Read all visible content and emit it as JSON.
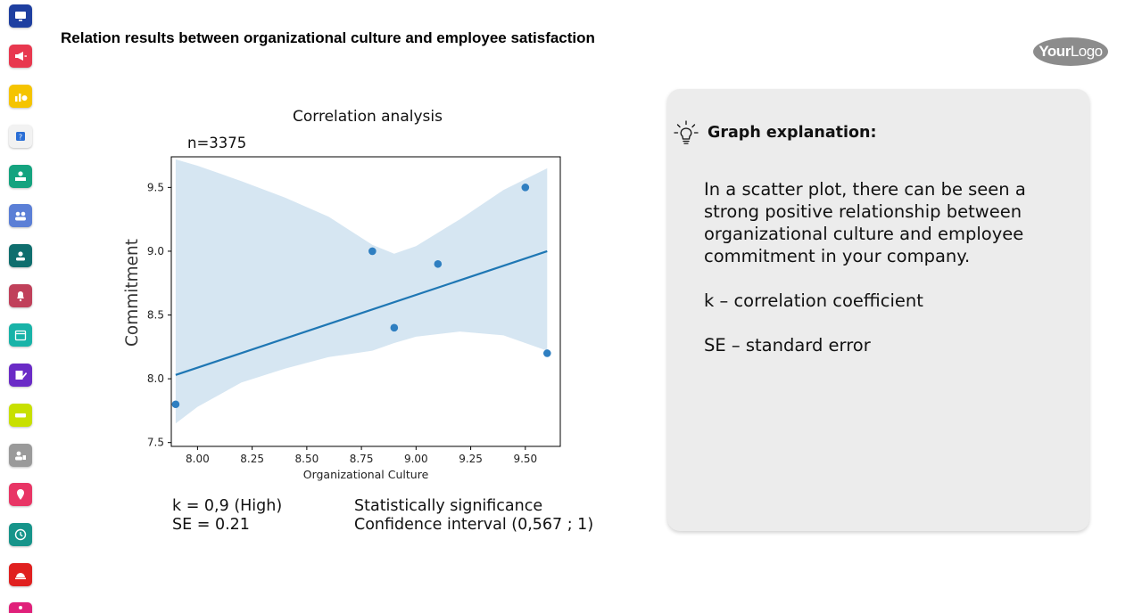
{
  "page": {
    "title": "Relation results between organizational culture and employee satisfaction"
  },
  "logo": {
    "part1": "Your",
    "part2": "Logo"
  },
  "sidebar": {
    "items": [
      {
        "icon": "monitor-icon",
        "color": "#1e3fa0"
      },
      {
        "icon": "megaphone-icon",
        "color": "#e8384f"
      },
      {
        "icon": "chart-dollar-icon",
        "color": "#f5c400"
      },
      {
        "icon": "question-icon",
        "color": "#f2f2f2"
      },
      {
        "icon": "training-icon",
        "color": "#14a37f"
      },
      {
        "icon": "team-icon",
        "color": "#5b7fd6"
      },
      {
        "icon": "user-card-icon",
        "color": "#0f6e6e"
      },
      {
        "icon": "bell-icon",
        "color": "#c0405a"
      },
      {
        "icon": "calendar-icon",
        "color": "#18b3a8"
      },
      {
        "icon": "edit-icon",
        "color": "#6a2bc6"
      },
      {
        "icon": "ticket-icon",
        "color": "#c8e000"
      },
      {
        "icon": "users-icon",
        "color": "#9a9a9a"
      },
      {
        "icon": "location-icon",
        "color": "#e83565"
      },
      {
        "icon": "clock-icon",
        "color": "#16948a"
      },
      {
        "icon": "service-bell-icon",
        "color": "#e0201f"
      },
      {
        "icon": "more-icon",
        "color": "#e0207a"
      }
    ]
  },
  "chart_data": {
    "type": "scatter",
    "title": "Correlation analysis",
    "annotation": "n=3375",
    "xlabel": "Organizational Culture",
    "ylabel": "Commitment",
    "xlim": [
      7.88,
      9.66
    ],
    "ylim": [
      7.47,
      9.74
    ],
    "xticks": [
      "8.00",
      "8.25",
      "8.50",
      "8.75",
      "9.00",
      "9.25",
      "9.50"
    ],
    "yticks": [
      "7.5",
      "8.0",
      "8.5",
      "9.0",
      "9.5"
    ],
    "points": [
      {
        "x": 7.9,
        "y": 7.8
      },
      {
        "x": 8.8,
        "y": 9.0
      },
      {
        "x": 8.9,
        "y": 8.4
      },
      {
        "x": 9.1,
        "y": 8.9
      },
      {
        "x": 9.5,
        "y": 9.5
      },
      {
        "x": 9.6,
        "y": 8.2
      }
    ],
    "regression": {
      "x0": 7.9,
      "y0": 8.03,
      "x1": 9.6,
      "y1": 9.0
    },
    "confidence_band": {
      "x": [
        7.9,
        8.0,
        8.2,
        8.4,
        8.6,
        8.8,
        8.9,
        9.0,
        9.2,
        9.4,
        9.6
      ],
      "upper": [
        9.72,
        9.67,
        9.55,
        9.42,
        9.27,
        9.05,
        8.98,
        9.04,
        9.25,
        9.48,
        9.65
      ],
      "lower": [
        7.65,
        7.78,
        7.97,
        8.08,
        8.17,
        8.22,
        8.28,
        8.33,
        8.37,
        8.34,
        8.22
      ]
    },
    "colors": {
      "points": "#2f7fc1",
      "line": "#1f77b4",
      "band": "#d6e6f2"
    }
  },
  "stats": {
    "k": "k = 0,9 (High)",
    "se": "SE = 0.21",
    "significance": "Statistically significance",
    "confidence": "Confidence interval (0,567 ;  1)"
  },
  "explanation": {
    "title": "Graph explanation:",
    "paragraph": "In a scatter plot, there can be seen a strong positive relationship between organizational culture and employee commitment in your company.",
    "k_def": "k – correlation coefficient",
    "se_def": "SE – standard error"
  }
}
